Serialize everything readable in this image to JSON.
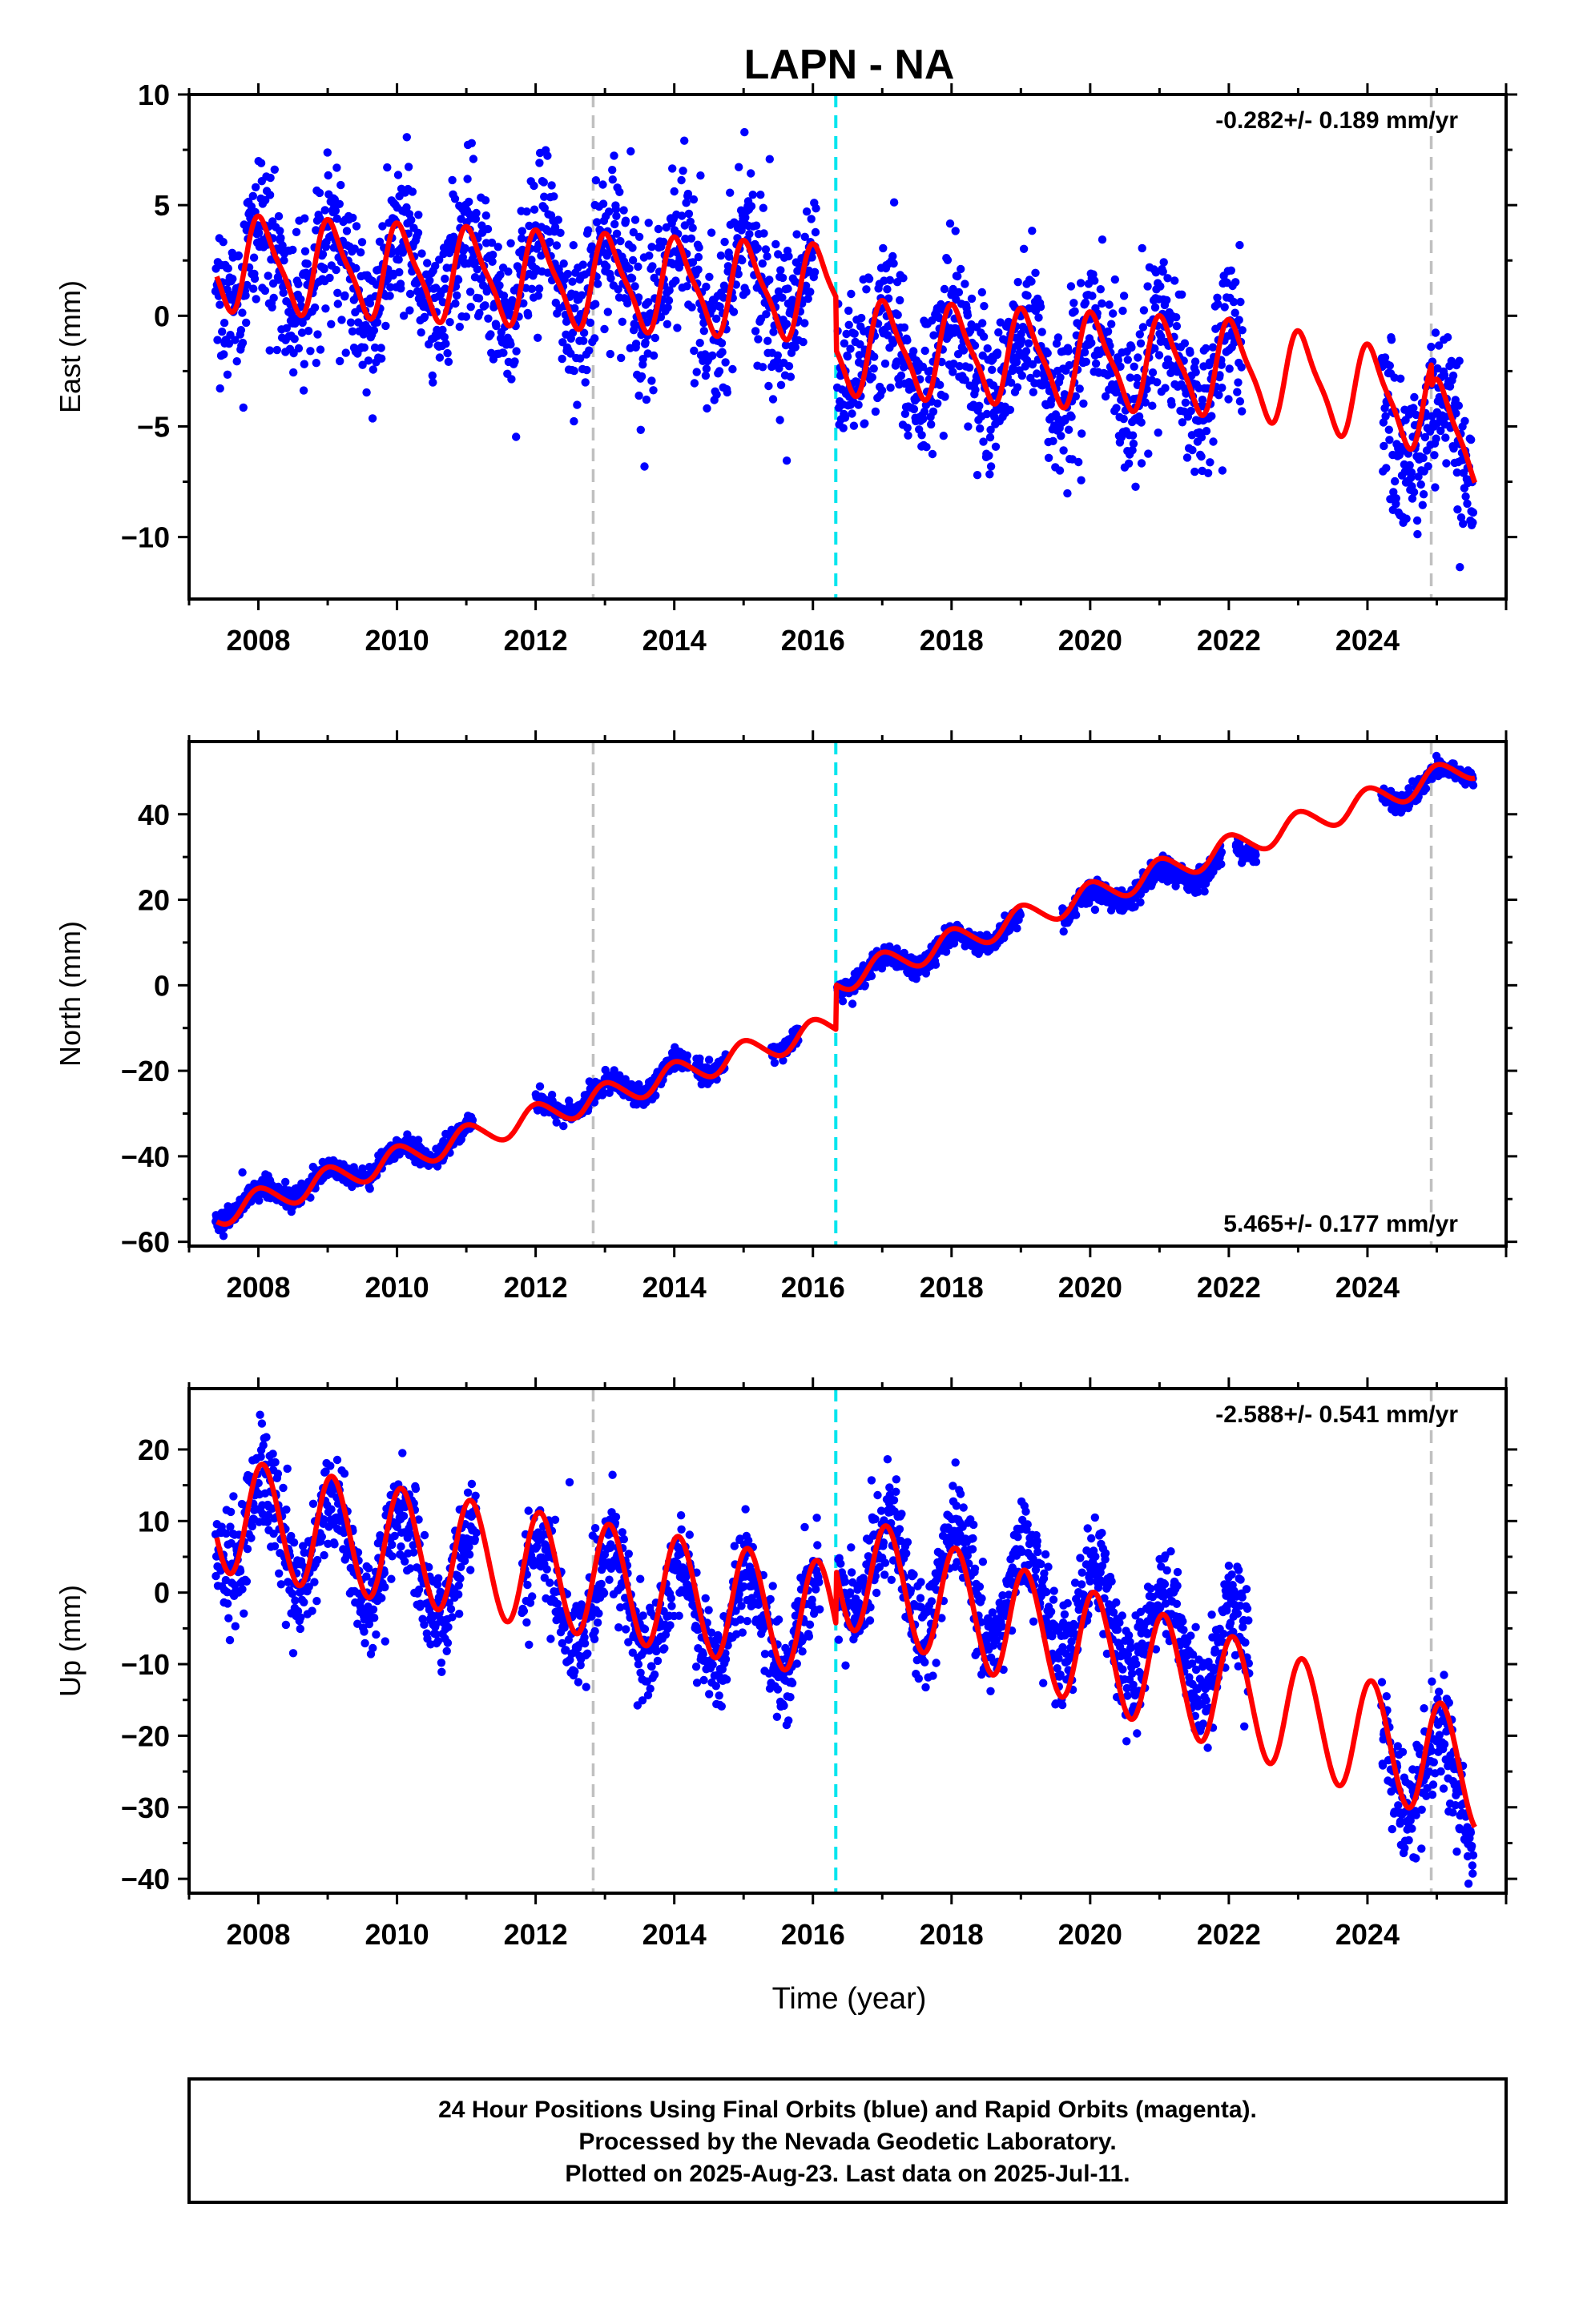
{
  "chart_data": [
    {
      "type": "scatter",
      "panel": "east",
      "title": "LAPN - NA",
      "ylabel": "East (mm)",
      "xlabel": "",
      "xlim": [
        2007.0,
        2026.0
      ],
      "ylim": [
        -12.8,
        10.0
      ],
      "x_ticks": [
        2008,
        2010,
        2012,
        2014,
        2016,
        2018,
        2020,
        2022,
        2024
      ],
      "y_ticks": [
        -10,
        -5,
        0,
        5,
        10
      ],
      "y_tick_labels": [
        "−10",
        "−5",
        "0",
        "5",
        "10"
      ],
      "rate_annotation": "-0.282+/- 0.189 mm/yr",
      "rate_position": "top-right",
      "vertical_lines": [
        {
          "x": 2012.83,
          "color": "#c0c0c0"
        },
        {
          "x": 2016.33,
          "color": "#00e5ee"
        },
        {
          "x": 2024.92,
          "color": "#c0c0c0"
        }
      ],
      "series": [
        {
          "kind": "points",
          "color": "#0000ff",
          "data_spans": [
            [
              2007.38,
              2016.05
            ],
            [
              2016.35,
              2022.2
            ],
            [
              2024.2,
              2025.53
            ]
          ],
          "trend": {
            "x": [
              2007.4,
              2016.3,
              2016.35,
              2022.2,
              2024.2,
              2025.5
            ],
            "y": [
              2.2,
              1.3,
              -1.6,
              -2.5,
              -4.5,
              -6.0
            ]
          },
          "seasonal_amplitude": 2.0,
          "noise_sd": 1.7
        },
        {
          "kind": "model",
          "color": "#ff0000",
          "x_range": [
            2007.4,
            2025.55
          ],
          "trend": {
            "x": [
              2007.4,
              2016.33,
              2016.34,
              2022.2,
              2024.2,
              2024.92,
              2024.93,
              2025.55
            ],
            "y": [
              2.4,
              1.0,
              -1.4,
              -2.4,
              -3.6,
              -4.0,
              -5.0,
              -5.6
            ]
          },
          "seasonal_amplitude": 2.0,
          "seasonal_phase": 1.2,
          "semiannual_amplitude": 0.5
        }
      ]
    },
    {
      "type": "scatter",
      "panel": "north",
      "ylabel": "North (mm)",
      "xlabel": "",
      "xlim": [
        2007.0,
        2026.0
      ],
      "ylim": [
        -61.0,
        57.0
      ],
      "x_ticks": [
        2008,
        2010,
        2012,
        2014,
        2016,
        2018,
        2020,
        2022,
        2024
      ],
      "y_ticks": [
        -60,
        -40,
        -20,
        0,
        20,
        40
      ],
      "y_tick_labels": [
        "−60",
        "−40",
        "−20",
        "0",
        "20",
        "40"
      ],
      "rate_annotation": "5.465+/- 0.177 mm/yr",
      "rate_position": "bottom-right",
      "vertical_lines": [
        {
          "x": 2012.83,
          "color": "#c0c0c0"
        },
        {
          "x": 2016.33,
          "color": "#00e5ee"
        },
        {
          "x": 2024.92,
          "color": "#c0c0c0"
        }
      ],
      "series": [
        {
          "kind": "points",
          "color": "#0000ff",
          "data_spans": [
            [
              2007.38,
              2011.1
            ],
            [
              2012.0,
              2013.6
            ],
            [
              2013.62,
              2014.2
            ],
            [
              2014.3,
              2014.75
            ],
            [
              2015.4,
              2015.8
            ],
            [
              2016.35,
              2019.0
            ],
            [
              2019.6,
              2021.9
            ],
            [
              2022.1,
              2022.4
            ],
            [
              2024.2,
              2025.53
            ]
          ],
          "trend": {
            "x": [
              2007.4,
              2016.3,
              2016.35,
              2022.5,
              2024.2,
              2025.5
            ],
            "y": [
              -53.0,
              -9.0,
              1.0,
              32.0,
              43.5,
              51.0
            ]
          },
          "seasonal_amplitude": 2.5,
          "noise_sd": 1.2
        },
        {
          "kind": "model",
          "color": "#ff0000",
          "x_range": [
            2007.4,
            2025.55
          ],
          "trend": {
            "x": [
              2007.4,
              2016.33,
              2016.34,
              2025.55
            ],
            "y": [
              -53.5,
              -9.5,
              1.0,
              51.5
            ]
          },
          "seasonal_amplitude": 3.0,
          "seasonal_phase": 1.4,
          "semiannual_amplitude": 0.3
        }
      ]
    },
    {
      "type": "scatter",
      "panel": "up",
      "ylabel": "Up (mm)",
      "xlabel": "Time (year)",
      "xlim": [
        2007.0,
        2026.0
      ],
      "ylim": [
        -42.0,
        28.5
      ],
      "x_ticks": [
        2008,
        2010,
        2012,
        2014,
        2016,
        2018,
        2020,
        2022,
        2024
      ],
      "y_ticks": [
        -40,
        -30,
        -20,
        -10,
        0,
        10,
        20
      ],
      "y_tick_labels": [
        "−40",
        "−30",
        "−20",
        "−10",
        "0",
        "10",
        "20"
      ],
      "rate_annotation": "-2.588+/- 0.541 mm/yr",
      "rate_position": "top-right",
      "vertical_lines": [
        {
          "x": 2012.83,
          "color": "#c0c0c0"
        },
        {
          "x": 2016.33,
          "color": "#00e5ee"
        },
        {
          "x": 2024.92,
          "color": "#c0c0c0"
        }
      ],
      "series": [
        {
          "kind": "points",
          "color": "#0000ff",
          "data_spans": [
            [
              2007.38,
              2011.15
            ],
            [
              2011.8,
              2016.1
            ],
            [
              2016.35,
              2022.3
            ],
            [
              2024.2,
              2025.53
            ]
          ],
          "trend": {
            "x": [
              2007.4,
              2012.0,
              2016.3,
              2016.35,
              2019.0,
              2022.3,
              2024.2,
              2025.5
            ],
            "y": [
              10.0,
              0.0,
              -5.0,
              4.0,
              0.0,
              -10.0,
              -22.0,
              -30.0
            ]
          },
          "seasonal_amplitude": 7.0,
          "noise_sd": 3.5
        },
        {
          "kind": "model",
          "color": "#ff0000",
          "x_range": [
            2007.4,
            2025.55
          ],
          "trend": {
            "x": [
              2007.4,
              2016.33,
              2016.34,
              2025.55
            ],
            "y": [
              11.0,
              -4.0,
              3.5,
              -25.0
            ]
          },
          "seasonal_amplitude": 8.0,
          "seasonal_phase": 1.1,
          "semiannual_amplitude": 0.4
        }
      ]
    }
  ],
  "footer": {
    "line1": "24 Hour Positions Using Final Orbits (blue) and Rapid Orbits (magenta).",
    "line2": "Processed by the Nevada Geodetic Laboratory.",
    "line3": "Plotted on 2025-Aug-23. Last data on 2025-Jul-11."
  }
}
